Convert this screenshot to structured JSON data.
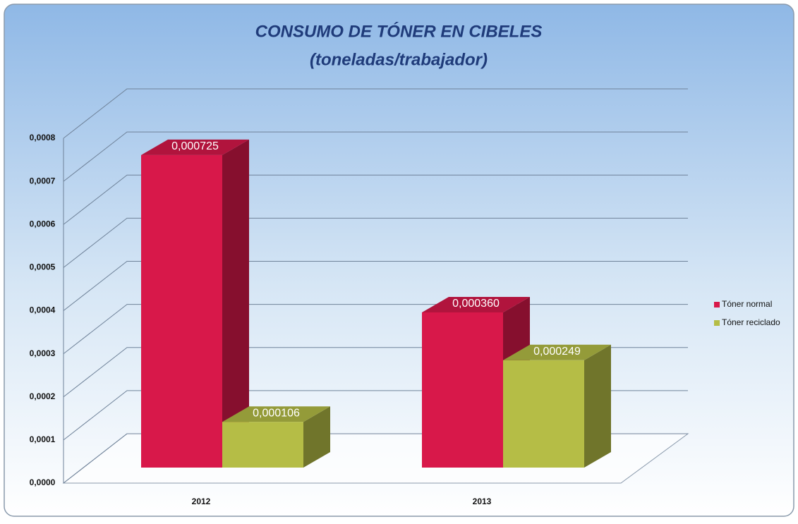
{
  "chart_data": {
    "type": "bar3d",
    "title": "CONSUMO DE TÓNER EN CIBELES",
    "subtitle": "(toneladas/trabajador)",
    "categories": [
      "2012",
      "2013"
    ],
    "series": [
      {
        "name": "Tóner normal",
        "color": "#d8184a",
        "values": [
          0.000725,
          0.00036
        ],
        "value_labels": [
          "0,000725",
          "0,000360"
        ]
      },
      {
        "name": "Tóner reciclado",
        "color": "#b5bd46",
        "values": [
          0.000106,
          0.000249
        ],
        "value_labels": [
          "0,000106",
          "0,000249"
        ]
      }
    ],
    "ylim": [
      0,
      0.0008
    ],
    "yticks": [
      {
        "value": 0,
        "label": "0,0000"
      },
      {
        "value": 0.0001,
        "label": "0,0001"
      },
      {
        "value": 0.0002,
        "label": "0,0002"
      },
      {
        "value": 0.0003,
        "label": "0,0003"
      },
      {
        "value": 0.0004,
        "label": "0,0004"
      },
      {
        "value": 0.0005,
        "label": "0,0005"
      },
      {
        "value": 0.0006,
        "label": "0,0006"
      },
      {
        "value": 0.0007,
        "label": "0,0007"
      },
      {
        "value": 0.0008,
        "label": "0,0008"
      }
    ],
    "grid": true,
    "legend": "right"
  }
}
